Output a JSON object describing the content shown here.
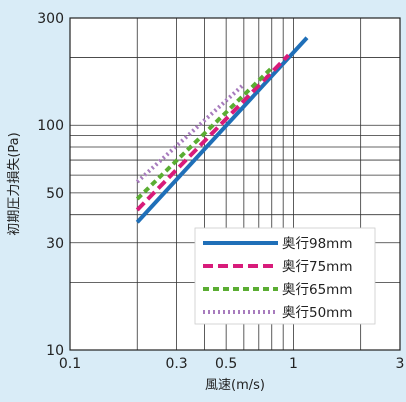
{
  "chart_data": {
    "type": "line",
    "title": "",
    "xlabel": "風速(m/s)",
    "ylabel": "初期圧力損失(Pa)",
    "x_scale": "log",
    "y_scale": "log",
    "xlim": [
      0.1,
      3
    ],
    "ylim": [
      10,
      300
    ],
    "x_ticks": [
      0.1,
      0.3,
      0.5,
      1,
      3
    ],
    "x_tick_labels": [
      "0.1",
      "0.3",
      "0.5",
      "1",
      "3"
    ],
    "y_ticks": [
      10,
      30,
      50,
      100,
      300
    ],
    "y_tick_labels": [
      "10",
      "30",
      "50",
      "100",
      "300"
    ],
    "grid": true,
    "legend_position": "bottom-right",
    "series": [
      {
        "name": "奥行98mm",
        "color": "#1f6fb8",
        "style": "solid",
        "x": [
          0.2,
          1.15
        ],
        "y": [
          37,
          245
        ]
      },
      {
        "name": "奥行75mm",
        "color": "#d81b7a",
        "style": "dashed",
        "x": [
          0.2,
          0.95
        ],
        "y": [
          42,
          205
        ]
      },
      {
        "name": "奥行65mm",
        "color": "#5aad32",
        "style": "dashed-short",
        "x": [
          0.2,
          0.8
        ],
        "y": [
          47,
          180
        ]
      },
      {
        "name": "奥行50mm",
        "color": "#a77bbd",
        "style": "dotted",
        "x": [
          0.2,
          0.6
        ],
        "y": [
          56,
          152
        ]
      }
    ]
  }
}
